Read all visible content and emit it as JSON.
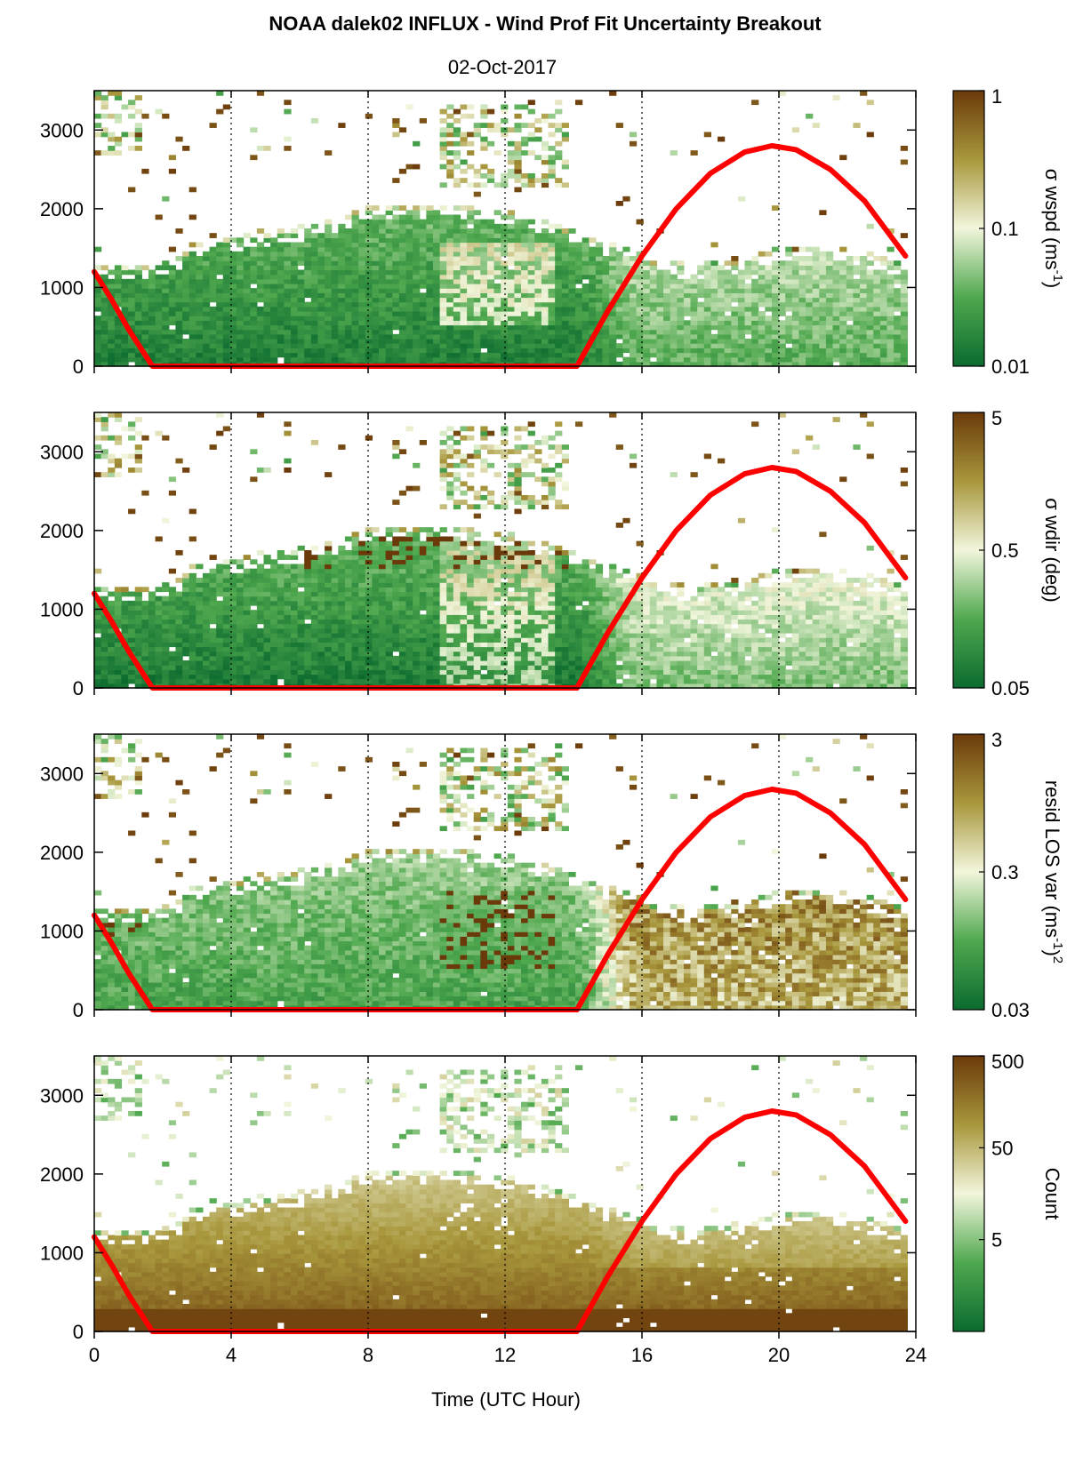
{
  "chart_data": {
    "type": "heatmap",
    "title": "NOAA dalek02 INFLUX - Wind Prof Fit Uncertainty Breakout",
    "subtitle": "02-Oct-2017",
    "xlabel": "Time (UTC Hour)",
    "xlim": [
      0,
      24
    ],
    "xticks": [
      "0",
      "4",
      "8",
      "12",
      "16",
      "20",
      "24"
    ],
    "ylim": [
      0,
      3500
    ],
    "yticks": [
      "0",
      "1000",
      "2000",
      "3000"
    ],
    "vertical_gridlines_at_hours": [
      4,
      8,
      12,
      16,
      20
    ],
    "overlay_line": {
      "color": "#ff0000",
      "points_hour_height": [
        [
          0,
          1200
        ],
        [
          0.5,
          850
        ],
        [
          1.0,
          470
        ],
        [
          1.7,
          0
        ],
        [
          14.1,
          0
        ],
        [
          15.0,
          700
        ],
        [
          16.0,
          1400
        ],
        [
          17.0,
          2000
        ],
        [
          18.0,
          2450
        ],
        [
          19.0,
          2720
        ],
        [
          19.8,
          2800
        ],
        [
          20.5,
          2750
        ],
        [
          21.5,
          2500
        ],
        [
          22.5,
          2100
        ],
        [
          23.7,
          1400
        ]
      ]
    },
    "colormap": {
      "low": "#0b6b2f",
      "mid": "#f2f6dc",
      "high": "#6b3a0a"
    },
    "panels": [
      {
        "name": "wspd",
        "colorbar_label_parts": [
          "σ wspd (ms",
          "-1",
          ")"
        ],
        "colorbar_scale": "log",
        "colorbar_ticks": [
          "1",
          "0.1",
          "0.01"
        ],
        "colorbar_range": [
          0.01,
          1
        ],
        "regime": "wspd"
      },
      {
        "name": "wdir",
        "colorbar_label_parts": [
          "σ wdir (deg)"
        ],
        "colorbar_scale": "log",
        "colorbar_ticks": [
          "5",
          "0.5",
          "0.05"
        ],
        "colorbar_range": [
          0.05,
          5
        ],
        "regime": "wdir"
      },
      {
        "name": "resid",
        "colorbar_label_parts": [
          "resid LOS var (ms",
          "-1",
          ")",
          "2"
        ],
        "colorbar_scale": "log",
        "colorbar_ticks": [
          "3",
          "0.3",
          "0.03"
        ],
        "colorbar_range": [
          0.03,
          3
        ],
        "regime": "resid"
      },
      {
        "name": "count",
        "colorbar_label_parts": [
          "Count"
        ],
        "colorbar_scale": "log",
        "colorbar_ticks": [
          "500",
          "50",
          "5"
        ],
        "colorbar_range": [
          0.5,
          500
        ],
        "regime": "count"
      }
    ]
  }
}
